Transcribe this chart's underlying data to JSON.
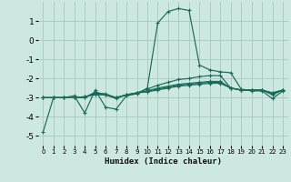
{
  "xlabel": "Humidex (Indice chaleur)",
  "xlim": [
    -0.5,
    23.5
  ],
  "ylim": [
    -5.5,
    2.0
  ],
  "yticks": [
    -5,
    -4,
    -3,
    -2,
    -1,
    0,
    1
  ],
  "xticks": [
    0,
    1,
    2,
    3,
    4,
    5,
    6,
    7,
    8,
    9,
    10,
    11,
    12,
    13,
    14,
    15,
    16,
    17,
    18,
    19,
    20,
    21,
    22,
    23
  ],
  "bg_color": "#cce8e0",
  "grid_color": "#aacec6",
  "line_color": "#1a6b5a",
  "lines": [
    {
      "x": [
        0,
        1,
        2,
        3,
        4,
        5,
        6,
        7,
        8,
        9,
        10,
        11,
        12,
        13,
        14,
        15,
        16,
        17,
        18,
        19,
        20,
        21,
        22,
        23
      ],
      "y": [
        -4.8,
        -3.0,
        -3.0,
        -2.9,
        -3.8,
        -2.6,
        -3.5,
        -3.6,
        -2.9,
        -2.8,
        -2.5,
        0.9,
        1.5,
        1.65,
        1.55,
        -1.3,
        -1.55,
        -1.65,
        -1.7,
        -2.55,
        -2.65,
        -2.65,
        -3.05,
        -2.65
      ]
    },
    {
      "x": [
        0,
        1,
        2,
        3,
        4,
        5,
        6,
        7,
        8,
        9,
        10,
        11,
        12,
        13,
        14,
        15,
        16,
        17,
        18,
        19,
        20,
        21,
        22,
        23
      ],
      "y": [
        -3.0,
        -3.0,
        -3.0,
        -3.0,
        -3.0,
        -2.7,
        -2.85,
        -3.05,
        -2.85,
        -2.75,
        -2.55,
        -2.35,
        -2.2,
        -2.05,
        -2.0,
        -1.9,
        -1.85,
        -1.85,
        -2.5,
        -2.6,
        -2.6,
        -2.6,
        -2.85,
        -2.6
      ]
    },
    {
      "x": [
        0,
        1,
        2,
        3,
        4,
        5,
        6,
        7,
        8,
        9,
        10,
        11,
        12,
        13,
        14,
        15,
        16,
        17,
        18,
        19,
        20,
        21,
        22,
        23
      ],
      "y": [
        -3.0,
        -3.0,
        -3.0,
        -3.0,
        -3.0,
        -2.75,
        -2.8,
        -3.0,
        -2.85,
        -2.75,
        -2.65,
        -2.5,
        -2.4,
        -2.3,
        -2.25,
        -2.2,
        -2.15,
        -2.15,
        -2.5,
        -2.6,
        -2.6,
        -2.6,
        -2.8,
        -2.6
      ]
    },
    {
      "x": [
        0,
        1,
        2,
        3,
        4,
        5,
        6,
        7,
        8,
        9,
        10,
        11,
        12,
        13,
        14,
        15,
        16,
        17,
        18,
        19,
        20,
        21,
        22,
        23
      ],
      "y": [
        -3.0,
        -3.0,
        -3.0,
        -3.0,
        -2.95,
        -2.8,
        -2.85,
        -3.0,
        -2.85,
        -2.75,
        -2.65,
        -2.55,
        -2.45,
        -2.35,
        -2.3,
        -2.25,
        -2.2,
        -2.2,
        -2.5,
        -2.6,
        -2.6,
        -2.6,
        -2.75,
        -2.6
      ]
    },
    {
      "x": [
        0,
        1,
        2,
        3,
        4,
        5,
        6,
        7,
        8,
        9,
        10,
        11,
        12,
        13,
        14,
        15,
        16,
        17,
        18,
        19,
        20,
        21,
        22,
        23
      ],
      "y": [
        -3.0,
        -3.0,
        -3.0,
        -3.0,
        -2.95,
        -2.85,
        -2.85,
        -3.0,
        -2.85,
        -2.75,
        -2.7,
        -2.6,
        -2.5,
        -2.4,
        -2.35,
        -2.3,
        -2.25,
        -2.25,
        -2.5,
        -2.6,
        -2.6,
        -2.6,
        -2.75,
        -2.6
      ]
    }
  ]
}
